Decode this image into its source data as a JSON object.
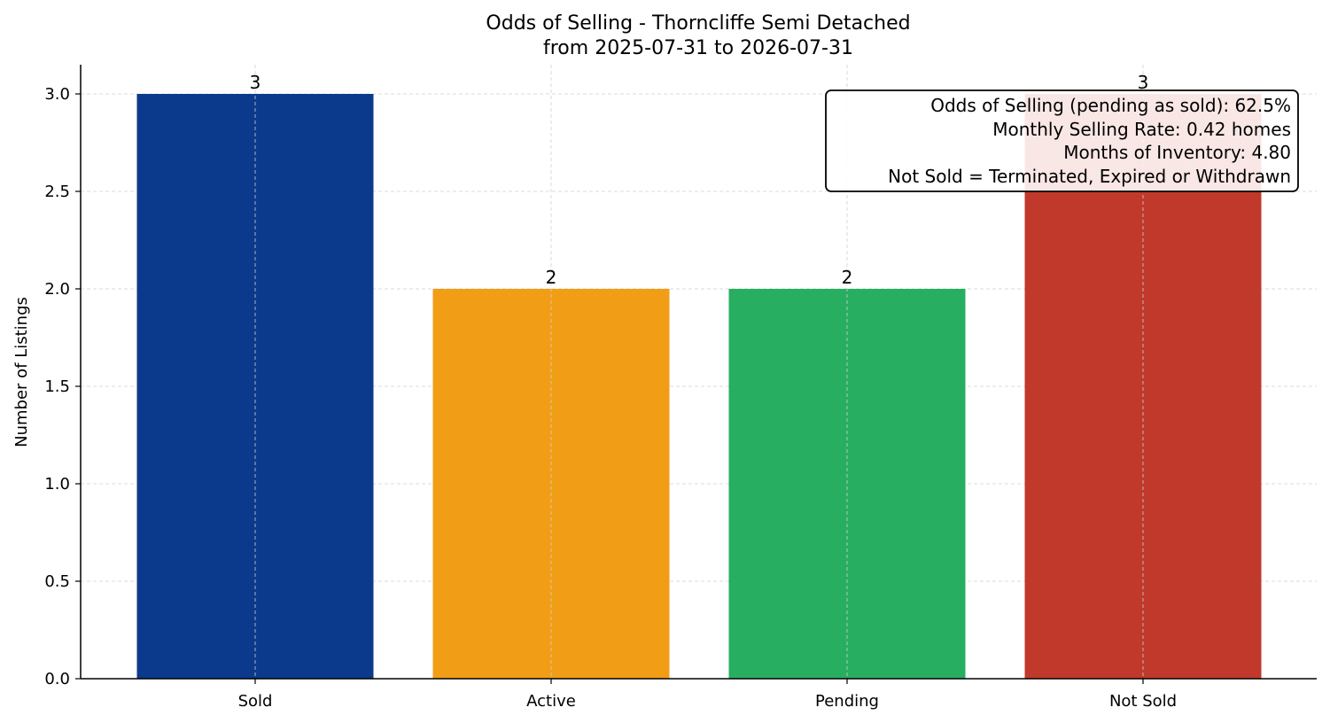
{
  "chart_data": {
    "type": "bar",
    "title": "Odds of Selling - Thorncliffe Semi Detached",
    "subtitle": "from 2025-07-31 to 2026-07-31",
    "xlabel": "",
    "ylabel": "Number of Listings",
    "categories": [
      "Sold",
      "Active",
      "Pending",
      "Not Sold"
    ],
    "values": [
      3,
      2,
      2,
      3
    ],
    "value_labels": [
      "3",
      "2",
      "2",
      "3"
    ],
    "colors": [
      "#0b3a8c",
      "#f19e16",
      "#27ae60",
      "#c0392b"
    ],
    "ylim": [
      0,
      3.15
    ],
    "yticks": [
      0.0,
      0.5,
      1.0,
      1.5,
      2.0,
      2.5,
      3.0
    ],
    "ytick_labels": [
      "0.0",
      "0.5",
      "1.0",
      "1.5",
      "2.0",
      "2.5",
      "3.0"
    ],
    "grid": true,
    "annotation_lines": [
      "Odds of Selling (pending as sold): 62.5%",
      "Monthly Selling Rate: 0.42 homes",
      "Months of Inventory: 4.80",
      "Not Sold = Terminated, Expired or Withdrawn"
    ],
    "annotation_position": "top-right"
  }
}
